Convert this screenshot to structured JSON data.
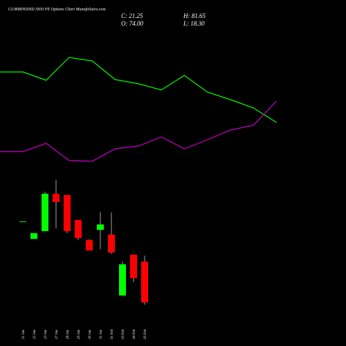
{
  "chart_data": [
    {
      "type": "line",
      "ylim": [
        0,
        100
      ],
      "series": [
        {
          "color": "#00ff00",
          "values": [
            58.4,
            58.4,
            53.6,
            66.8,
            64.8,
            54,
            51.6,
            48,
            56.4,
            46.8,
            42.4,
            37.6,
            29.2
          ]
        },
        {
          "color": "#cc00cc",
          "values": [
            12.4,
            12.4,
            17.2,
            7.2,
            6.8,
            14,
            15.6,
            20.8,
            14,
            19.2,
            24.8,
            27.6,
            41.6
          ]
        }
      ]
    },
    {
      "type": "candlestick",
      "title": "CUMMINSIND 3950 PE Options Chart MunafaSutra.com",
      "ohlc_labels": [
        "C: 21.25",
        "H: 81.65",
        "O: 74.00",
        "L: 18.30"
      ],
      "up_color": "#00ff00",
      "down_color": "#ff0000",
      "ylim": [
        0,
        180
      ],
      "categories": [
        "21 Jan",
        "22 Jan",
        "23 Jan",
        "27 Jan",
        "28 Jan",
        "29 Jan",
        "30 Jan",
        "31 Jan",
        "01 Feb",
        "03 Feb",
        "04 Feb",
        "05 Feb"
      ],
      "open": [
        126,
        103.3,
        113.4,
        161.7,
        160,
        127.8,
        101.8,
        114.9,
        109,
        30.2,
        83,
        74
      ],
      "high": [
        126,
        110.8,
        164.3,
        179.6,
        160,
        127.8,
        103,
        138.1,
        137.5,
        74,
        83,
        81.65
      ],
      "low": [
        126,
        103.3,
        113.4,
        117,
        110.8,
        101.7,
        88.4,
        90.1,
        84,
        30.2,
        47.3,
        18.3
      ],
      "close": [
        126,
        110.8,
        161.7,
        150.9,
        113.4,
        104.5,
        88.4,
        122,
        85.8,
        70.5,
        52.6,
        21.25
      ]
    }
  ]
}
